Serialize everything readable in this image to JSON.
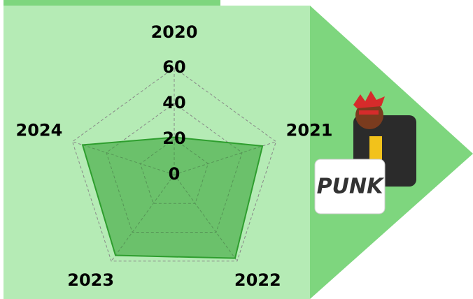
{
  "chart_data": {
    "type": "radar",
    "categories": [
      "2020",
      "2021",
      "2022",
      "2023",
      "2024"
    ],
    "values": [
      21,
      52,
      58,
      56,
      54
    ],
    "color": "#2e9e2e",
    "rlim": [
      0,
      60
    ],
    "rticks": [
      0,
      20,
      40,
      60
    ],
    "grid": true
  },
  "sticker_text": "PUNK"
}
